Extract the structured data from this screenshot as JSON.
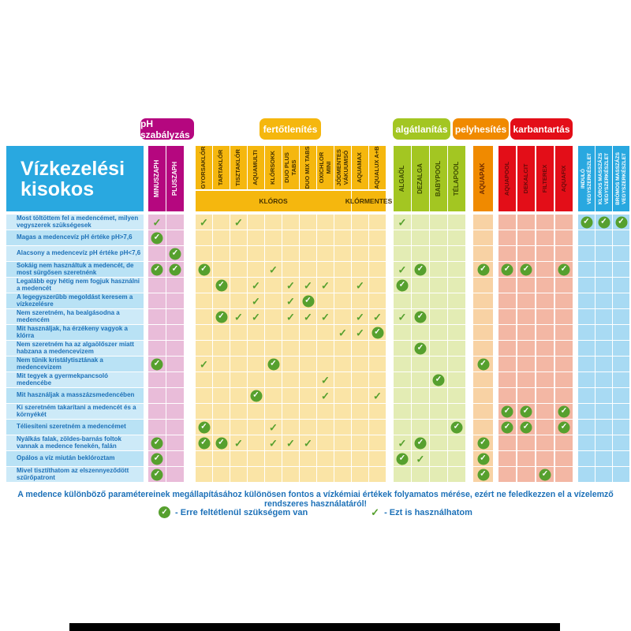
{
  "title": "Vízkezelési kisokos",
  "badges": [
    {
      "label": "pH szabályzás",
      "color": "#b5077f"
    },
    {
      "label": "fertőtlenítés",
      "color": "#f5b70e"
    },
    {
      "label": "algátlanítás",
      "color": "#a3c622"
    },
    {
      "label": "pelyhesítés",
      "color": "#f08a00"
    },
    {
      "label": "karbantartás",
      "color": "#e30e18"
    }
  ],
  "colors": {
    "panel_blue": "#29a8e0",
    "label_text": "#1d71b8",
    "check_green": "#56a02e",
    "row_bg_a": "#cdeaf8",
    "row_bg_b": "#b9e2f5"
  },
  "chart_data": {
    "type": "table",
    "column_groups": {
      "ph": {
        "header": "#b5077f",
        "cell": "#e9bcd9",
        "text": "#ffffff"
      },
      "chlor": {
        "header": "#f5b70e",
        "cell": "#fae4a6",
        "text": "#4a3500"
      },
      "algae": {
        "header": "#a3c622",
        "cell": "#e3ecb4",
        "text": "#3e4d00"
      },
      "floc": {
        "header": "#f08a00",
        "cell": "#f8d2a4",
        "text": "#6e2a00"
      },
      "maint": {
        "header": "#e30e18",
        "cell": "#f3b7a4",
        "text": "#6d0a0a"
      },
      "kits": {
        "header": "#29a8e0",
        "cell": "#a8daf3",
        "text": "#ffffff"
      }
    },
    "columns": [
      {
        "id": "minuszaph",
        "label": "MINUSZAPH",
        "group": "ph"
      },
      {
        "id": "pluszaph",
        "label": "PLUSZAPH",
        "group": "ph"
      },
      {
        "id": "gyorsaklor",
        "label": "GYORSAKLÓR",
        "group": "chlor"
      },
      {
        "id": "tartaklor",
        "label": "TARTAKLÓR",
        "group": "chlor"
      },
      {
        "id": "tisztaklor",
        "label": "TISZTAKLÓR",
        "group": "chlor"
      },
      {
        "id": "aquamulti",
        "label": "AQUAMULTI",
        "group": "chlor"
      },
      {
        "id": "klorsokk",
        "label": "KLÓRSOKK",
        "group": "chlor"
      },
      {
        "id": "duoplus",
        "label": "DUO PLUS TABS",
        "group": "chlor"
      },
      {
        "id": "duomix",
        "label": "DUO MIX TABS",
        "group": "chlor"
      },
      {
        "id": "oxichlor",
        "label": "OXICHLOR MINI",
        "group": "chlor"
      },
      {
        "id": "vakuumso",
        "label": "JÓDMENTES VÁKUUMSÓ",
        "group": "chlor"
      },
      {
        "id": "aquamax",
        "label": "AQUAMAX",
        "group": "chlor"
      },
      {
        "id": "aqualux",
        "label": "AQUALUX A+B",
        "group": "chlor"
      },
      {
        "id": "algaol",
        "label": "ALGAÖL",
        "group": "algae"
      },
      {
        "id": "dezalga",
        "label": "DEZALGA",
        "group": "algae"
      },
      {
        "id": "babypool",
        "label": "BABYPOOL",
        "group": "algae"
      },
      {
        "id": "telapool",
        "label": "TÉLAPOOL",
        "group": "algae"
      },
      {
        "id": "aquapak",
        "label": "AQUAPAK",
        "group": "floc"
      },
      {
        "id": "aquapool",
        "label": "AQUAPOOL",
        "group": "maint"
      },
      {
        "id": "dekalcit",
        "label": "DEKALCIT",
        "group": "maint"
      },
      {
        "id": "filterex",
        "label": "FILTEREX",
        "group": "maint"
      },
      {
        "id": "aquafix",
        "label": "AQUAFIX",
        "group": "maint"
      },
      {
        "id": "indulo",
        "label": "INDULÓ VEGYSZERKÉSZLET",
        "group": "kits"
      },
      {
        "id": "kloros_masszazs",
        "label": "KLÓROS MASSZÁZS VEGYSZERKÉSZLET",
        "group": "kits"
      },
      {
        "id": "bromos_masszazs",
        "label": "BRÓMOS MASSZÁZS VEGYSZERKÉSZLET",
        "group": "kits"
      }
    ],
    "bands": [
      {
        "label": "KLÓROS",
        "from": "gyorsaklor",
        "to": "vakuumso"
      },
      {
        "label": "KLÓRMENTES",
        "from": "aquamax",
        "to": "aqualux"
      }
    ],
    "rows": [
      {
        "label": "Most töltöttem fel a medencémet, milyen vegyszerek szükségesek",
        "marks": {
          "minuszaph": "can",
          "gyorsaklor": "can",
          "tisztaklor": "can",
          "algaol": "can",
          "indulo": "need",
          "kloros_masszazs": "need",
          "bromos_masszazs": "need"
        }
      },
      {
        "label": "Magas a medencevíz pH értéke pH>7,6",
        "marks": {
          "minuszaph": "need"
        }
      },
      {
        "label": "Alacsony a medencevíz pH értéke pH<7,6",
        "marks": {
          "pluszaph": "need"
        }
      },
      {
        "label": "Sokáig nem használtuk a medencét, de most sürgősen szeretnénk",
        "marks": {
          "minuszaph": "need",
          "pluszaph": "need",
          "gyorsaklor": "need",
          "klorsokk": "can",
          "algaol": "can",
          "dezalga": "need",
          "aquapak": "need",
          "aquapool": "need",
          "dekalcit": "need",
          "aquafix": "need"
        }
      },
      {
        "label": "Legalább egy hétig nem fogjuk használni a medencét",
        "marks": {
          "tartaklor": "need",
          "aquamulti": "can",
          "duoplus": "can",
          "duomix": "can",
          "oxichlor": "can",
          "aquamax": "can",
          "algaol": "need"
        }
      },
      {
        "label": "A legegyszerűbb megoldást keresem a vízkezelésre",
        "marks": {
          "aquamulti": "can",
          "duoplus": "can",
          "duomix": "need"
        }
      },
      {
        "label": "Nem szeretném, ha bealgásodna a medencém",
        "marks": {
          "tartaklor": "need",
          "tisztaklor": "can",
          "aquamulti": "can",
          "duoplus": "can",
          "duomix": "can",
          "oxichlor": "can",
          "aquamax": "can",
          "aqualux": "can",
          "algaol": "can",
          "dezalga": "need"
        }
      },
      {
        "label": "Mit használjak, ha érzékeny vagyok a klórra",
        "marks": {
          "vakuumso": "can",
          "aquamax": "can",
          "aqualux": "need"
        }
      },
      {
        "label": "Nem szeretném ha az algaölőszer miatt habzana a medencevizem",
        "marks": {
          "dezalga": "need"
        }
      },
      {
        "label": "Nem tűnik kristálytisztának a medencevizem",
        "marks": {
          "minuszaph": "need",
          "gyorsaklor": "can",
          "klorsokk": "need",
          "aquapak": "need"
        }
      },
      {
        "label": "Mit tegyek a gyermekpancsoló medencébe",
        "marks": {
          "oxichlor": "can",
          "babypool": "need"
        }
      },
      {
        "label": "Mit használjak a masszázsmedencében",
        "marks": {
          "aquamulti": "need",
          "oxichlor": "can",
          "aqualux": "can"
        }
      },
      {
        "label": "Ki szeretném takarítani a medencét és a környékét",
        "marks": {
          "aquapool": "need",
          "dekalcit": "need",
          "aquafix": "need"
        }
      },
      {
        "label": "Téliesíteni szeretném a medencémet",
        "marks": {
          "gyorsaklor": "need",
          "klorsokk": "can",
          "telapool": "need",
          "aquapool": "need",
          "dekalcit": "need",
          "aquafix": "need"
        }
      },
      {
        "label": "Nyálkás falak, zöldes-barnás foltok vannak a medence fenekén, falán",
        "marks": {
          "minuszaph": "need",
          "gyorsaklor": "need",
          "tartaklor": "need",
          "tisztaklor": "can",
          "klorsokk": "can",
          "duoplus": "can",
          "duomix": "can",
          "algaol": "can",
          "dezalga": "need",
          "aquapak": "need"
        }
      },
      {
        "label": "Opálos a víz miután beklóroztam",
        "marks": {
          "minuszaph": "need",
          "algaol": "need",
          "dezalga": "can",
          "aquapak": "need"
        }
      },
      {
        "label": "Mivel tisztíthatom az elszennyeződött szűrőpatront",
        "marks": {
          "minuszaph": "need",
          "aquapak": "need",
          "filterex": "need"
        }
      }
    ]
  },
  "footer": {
    "note": "A medence különböző paramétereinek megállapításához különösen fontos a vízkémiai értékek folyamatos mérése, ezért ne feledkezzen el a vízelemző rendszeres használatáról!",
    "legend": [
      {
        "type": "need",
        "label": "- Erre feltétlenül szükségem van"
      },
      {
        "type": "can",
        "label": "- Ezt is használhatom"
      }
    ]
  }
}
